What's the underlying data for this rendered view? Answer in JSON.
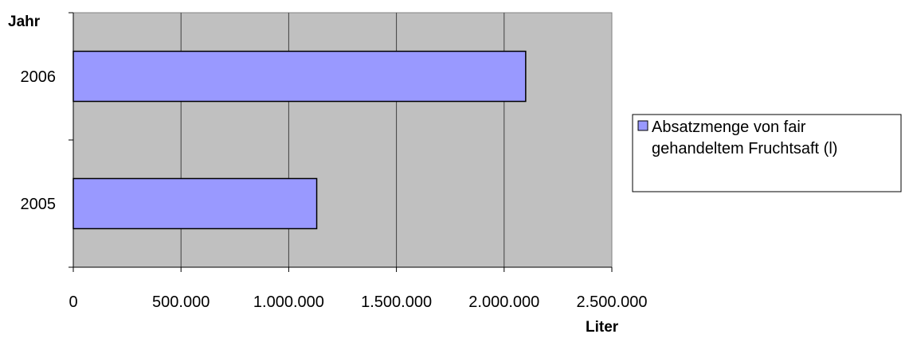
{
  "chart_data": {
    "type": "bar",
    "orientation": "horizontal",
    "categories": [
      "2006",
      "2005"
    ],
    "series": [
      {
        "name": "Absatzmenge von fair gehandeltem Fruchtsaft (l)",
        "values": [
          2100000,
          1130000
        ],
        "color": "#9999ff"
      }
    ],
    "xlim": [
      0,
      2500000
    ],
    "x_ticks": [
      0,
      500000,
      1000000,
      1500000,
      2000000,
      2500000
    ],
    "x_tick_labels": [
      "0",
      "500.000",
      "1.000.000",
      "1.500.000",
      "2.000.000",
      "2.500.000"
    ],
    "xlabel": "Liter",
    "ylabel": "Jahr",
    "legend_lines": [
      "Absatzmenge von fair",
      "gehandeltem Fruchtsaft (l)"
    ],
    "legend_position": "right",
    "grid": true,
    "plot_background": "#c0c0c0"
  }
}
